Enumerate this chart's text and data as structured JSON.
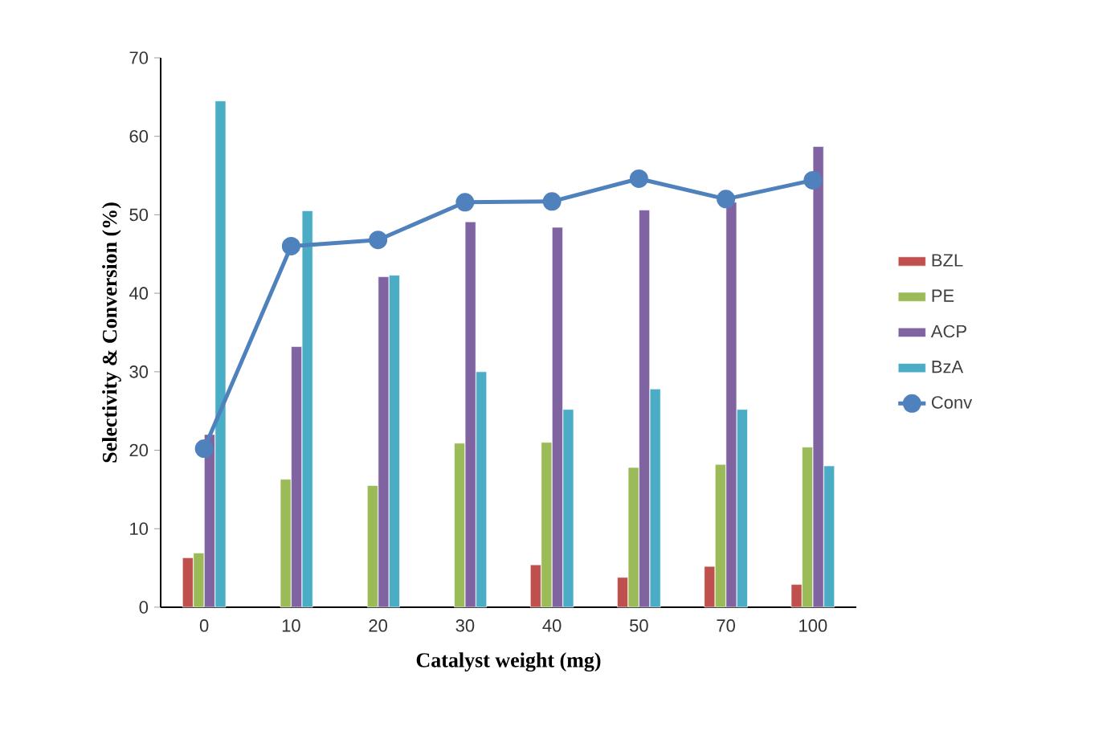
{
  "chart_data": {
    "type": "bar",
    "xlabel": "Catalyst weight (mg)",
    "ylabel": "Selectivity & Conversion (%)",
    "categories": [
      "0",
      "10",
      "20",
      "30",
      "40",
      "50",
      "70",
      "100"
    ],
    "ylim": [
      0,
      70
    ],
    "yticks": [
      0,
      10,
      20,
      30,
      40,
      50,
      60,
      70
    ],
    "legend": "right",
    "grid": false,
    "marker": "circle",
    "series": [
      {
        "name": "BZL",
        "color": "#c0504d",
        "values": [
          6.3,
          null,
          null,
          null,
          5.4,
          3.8,
          5.2,
          2.9
        ]
      },
      {
        "name": "PE",
        "color": "#9bbb59",
        "values": [
          6.9,
          16.3,
          15.5,
          20.9,
          21.0,
          17.8,
          18.2,
          20.4
        ]
      },
      {
        "name": "ACP",
        "color": "#8064a2",
        "values": [
          22.0,
          33.2,
          42.1,
          49.1,
          48.4,
          50.6,
          51.6,
          58.7
        ]
      },
      {
        "name": "BzA",
        "color": "#4bacc6",
        "values": [
          64.5,
          50.5,
          42.3,
          30.0,
          25.2,
          27.8,
          25.2,
          18.0
        ]
      },
      {
        "name": "Conv",
        "type": "line",
        "color": "#4f81bd",
        "values": [
          20.2,
          46.0,
          46.8,
          51.6,
          51.7,
          54.6,
          52.0,
          54.4
        ]
      }
    ]
  }
}
